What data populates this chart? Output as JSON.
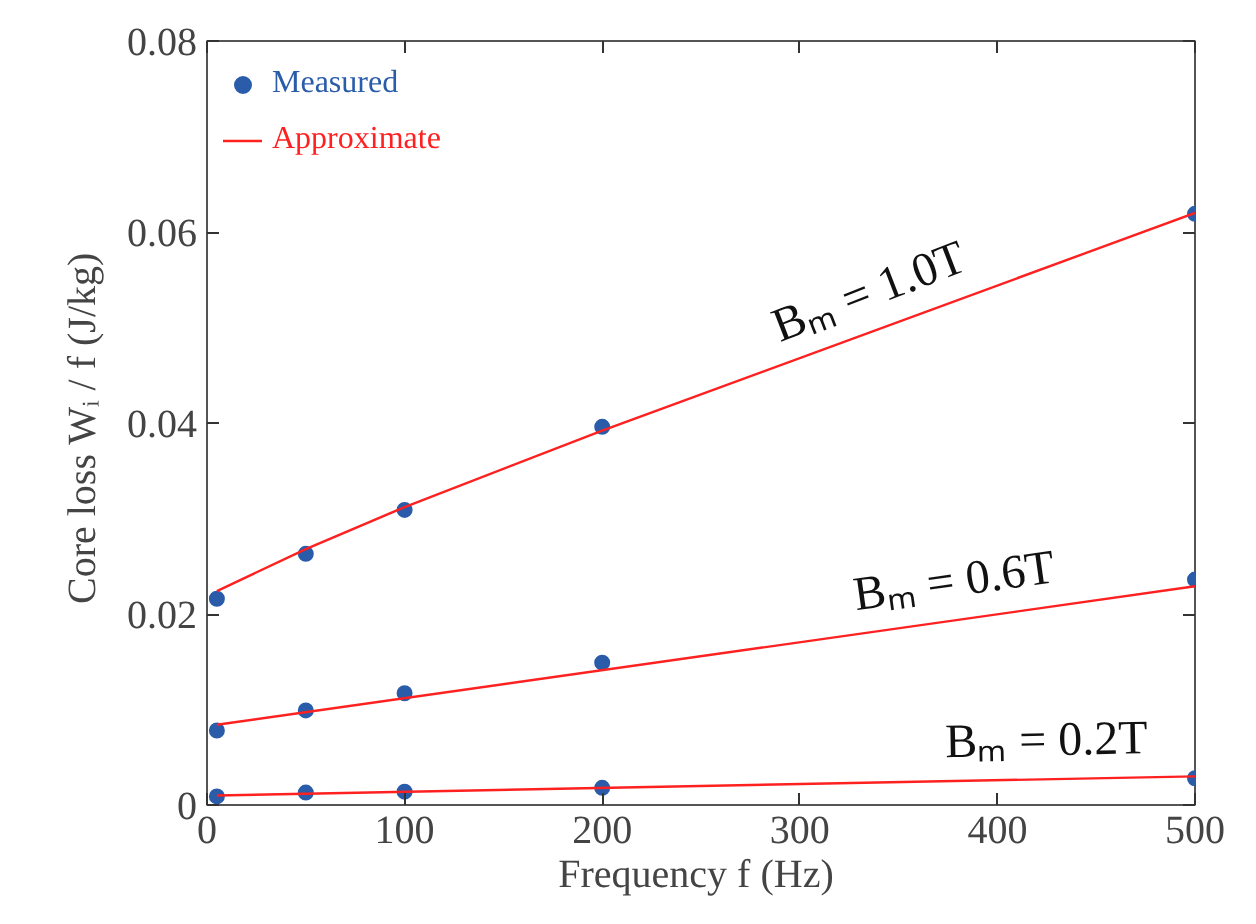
{
  "chart_data": {
    "type": "scatter",
    "xlabel": "Frequency  f (Hz)",
    "ylabel": "Core loss  Wᵢ / f (J/kg)",
    "x": [
      5,
      50,
      100,
      200,
      500
    ],
    "series": [
      {
        "name": "Measured",
        "marker": "circle",
        "color": "#2a5caa",
        "values": [
          0.0216,
          0.0263,
          0.0309,
          0.0396,
          0.0619
        ]
      },
      {
        "marker": "circle",
        "color": "#2a5caa",
        "values": [
          0.0078,
          0.0099,
          0.0117,
          0.0149,
          0.0236
        ]
      },
      {
        "marker": "circle",
        "color": "#2a5caa",
        "values": [
          0.0009,
          0.0013,
          0.0014,
          0.0018,
          0.0028
        ]
      },
      {
        "name": "Approximate",
        "type": "line",
        "color": "#ff2020",
        "x": [
          5,
          50,
          100,
          200,
          500
        ],
        "values": [
          0.0224,
          0.0268,
          0.0312,
          0.0392,
          0.062
        ]
      },
      {
        "type": "line",
        "color": "#ff2020",
        "x": [
          5,
          500
        ],
        "values": [
          0.0084,
          0.0229
        ]
      },
      {
        "type": "line",
        "color": "#ff2020",
        "x": [
          5,
          500
        ],
        "values": [
          0.001,
          0.003
        ]
      }
    ],
    "annotations": [
      "Bₘ = 1.0T",
      "Bₘ = 0.6T",
      "Bₘ = 0.2T"
    ],
    "xlim": [
      0,
      500
    ],
    "ylim": [
      0,
      0.08
    ],
    "xticks": [
      0,
      100,
      200,
      300,
      400,
      500
    ],
    "yticks": [
      0,
      0.02,
      0.04,
      0.06,
      0.08
    ],
    "grid": false,
    "legend": "top left"
  }
}
